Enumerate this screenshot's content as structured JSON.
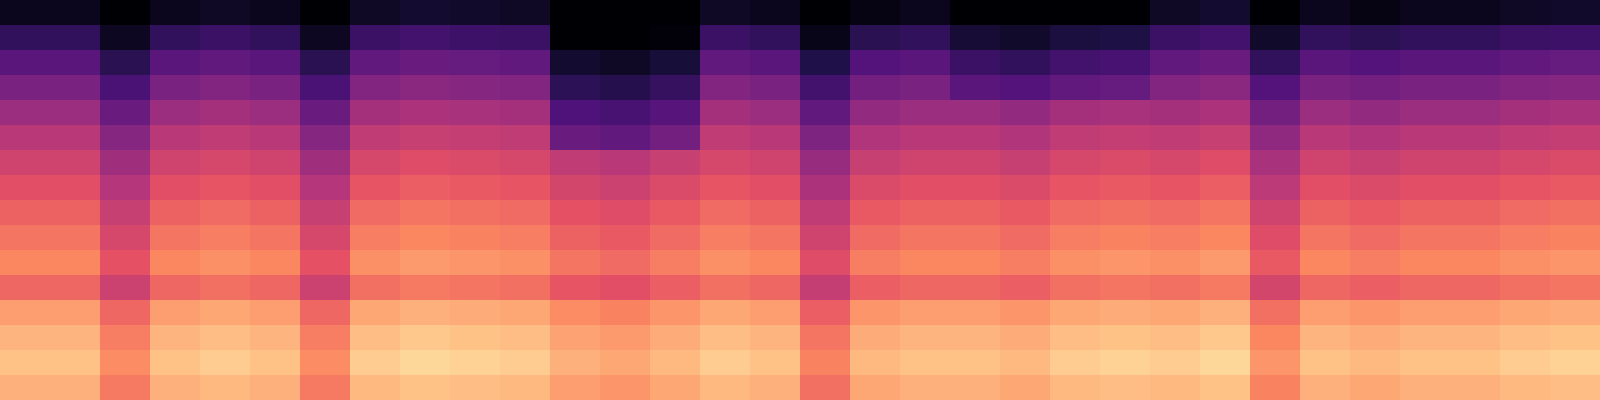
{
  "chart_data": {
    "type": "heatmap",
    "tick_labels": false,
    "color_range": [
      0,
      100
    ],
    "cells": [
      [
        5,
        5,
        0,
        5,
        7,
        5,
        0,
        7,
        9,
        8,
        7,
        0,
        0,
        0,
        7,
        5,
        0,
        3,
        5,
        0,
        0,
        0,
        0,
        7,
        9,
        0,
        5,
        3,
        5,
        5,
        7,
        8
      ],
      [
        18,
        18,
        6,
        18,
        20,
        18,
        6,
        20,
        22,
        21,
        20,
        0,
        0,
        1,
        20,
        18,
        4,
        16,
        18,
        10,
        8,
        12,
        13,
        20,
        22,
        8,
        18,
        16,
        18,
        18,
        20,
        21
      ],
      [
        28,
        28,
        16,
        28,
        30,
        28,
        16,
        30,
        32,
        31,
        30,
        9,
        7,
        11,
        30,
        28,
        14,
        26,
        28,
        20,
        18,
        22,
        23,
        30,
        32,
        18,
        28,
        26,
        28,
        28,
        30,
        31
      ],
      [
        36,
        36,
        24,
        36,
        38,
        36,
        24,
        38,
        40,
        39,
        38,
        17,
        15,
        19,
        38,
        36,
        22,
        34,
        36,
        28,
        26,
        30,
        31,
        38,
        40,
        26,
        36,
        34,
        36,
        36,
        38,
        39
      ],
      [
        44,
        44,
        32,
        44,
        46,
        44,
        32,
        46,
        48,
        47,
        46,
        25,
        23,
        27,
        46,
        44,
        30,
        42,
        44,
        44,
        42,
        46,
        47,
        46,
        48,
        34,
        44,
        42,
        44,
        44,
        46,
        47
      ],
      [
        51,
        51,
        39,
        51,
        53,
        51,
        39,
        53,
        55,
        54,
        53,
        32,
        30,
        34,
        53,
        51,
        37,
        49,
        51,
        51,
        49,
        53,
        54,
        53,
        55,
        41,
        51,
        49,
        51,
        51,
        53,
        54
      ],
      [
        57,
        57,
        45,
        57,
        59,
        57,
        45,
        59,
        61,
        60,
        59,
        53,
        51,
        55,
        59,
        57,
        43,
        55,
        57,
        57,
        55,
        59,
        60,
        59,
        61,
        47,
        57,
        55,
        57,
        57,
        59,
        60
      ],
      [
        62,
        62,
        50,
        62,
        64,
        62,
        50,
        64,
        66,
        65,
        64,
        58,
        56,
        60,
        64,
        62,
        48,
        60,
        62,
        62,
        60,
        64,
        65,
        64,
        66,
        52,
        62,
        60,
        62,
        62,
        64,
        65
      ],
      [
        67,
        67,
        55,
        67,
        69,
        67,
        55,
        69,
        71,
        70,
        69,
        63,
        61,
        65,
        69,
        67,
        53,
        65,
        67,
        67,
        65,
        69,
        70,
        69,
        71,
        57,
        67,
        65,
        67,
        67,
        69,
        70
      ],
      [
        71,
        71,
        59,
        71,
        73,
        71,
        59,
        73,
        75,
        74,
        73,
        67,
        65,
        69,
        73,
        71,
        57,
        69,
        71,
        71,
        69,
        73,
        74,
        73,
        75,
        61,
        71,
        69,
        71,
        71,
        73,
        74
      ],
      [
        75,
        75,
        63,
        75,
        77,
        75,
        63,
        77,
        79,
        78,
        77,
        71,
        69,
        73,
        77,
        75,
        61,
        73,
        75,
        75,
        73,
        77,
        78,
        77,
        79,
        65,
        75,
        73,
        75,
        75,
        77,
        78
      ],
      [
        68,
        68,
        56,
        68,
        70,
        68,
        56,
        70,
        72,
        71,
        70,
        64,
        62,
        66,
        70,
        68,
        54,
        66,
        68,
        68,
        66,
        70,
        71,
        70,
        72,
        58,
        68,
        66,
        68,
        68,
        70,
        71
      ],
      [
        80,
        80,
        68,
        80,
        82,
        80,
        68,
        82,
        84,
        83,
        82,
        76,
        74,
        78,
        82,
        80,
        66,
        78,
        80,
        80,
        78,
        82,
        83,
        82,
        84,
        70,
        80,
        78,
        80,
        80,
        82,
        83
      ],
      [
        85,
        85,
        73,
        85,
        87,
        85,
        73,
        87,
        89,
        88,
        87,
        81,
        79,
        83,
        87,
        85,
        71,
        83,
        85,
        85,
        83,
        87,
        88,
        87,
        89,
        75,
        85,
        83,
        85,
        85,
        87,
        88
      ],
      [
        88,
        88,
        76,
        88,
        90,
        88,
        76,
        90,
        92,
        91,
        90,
        84,
        82,
        86,
        90,
        88,
        74,
        86,
        88,
        88,
        86,
        90,
        91,
        90,
        92,
        78,
        88,
        86,
        88,
        88,
        90,
        91
      ],
      [
        84,
        84,
        72,
        84,
        86,
        84,
        72,
        86,
        88,
        87,
        86,
        80,
        78,
        82,
        86,
        84,
        70,
        82,
        84,
        84,
        82,
        86,
        87,
        86,
        88,
        74,
        84,
        82,
        84,
        84,
        86,
        87
      ]
    ]
  }
}
